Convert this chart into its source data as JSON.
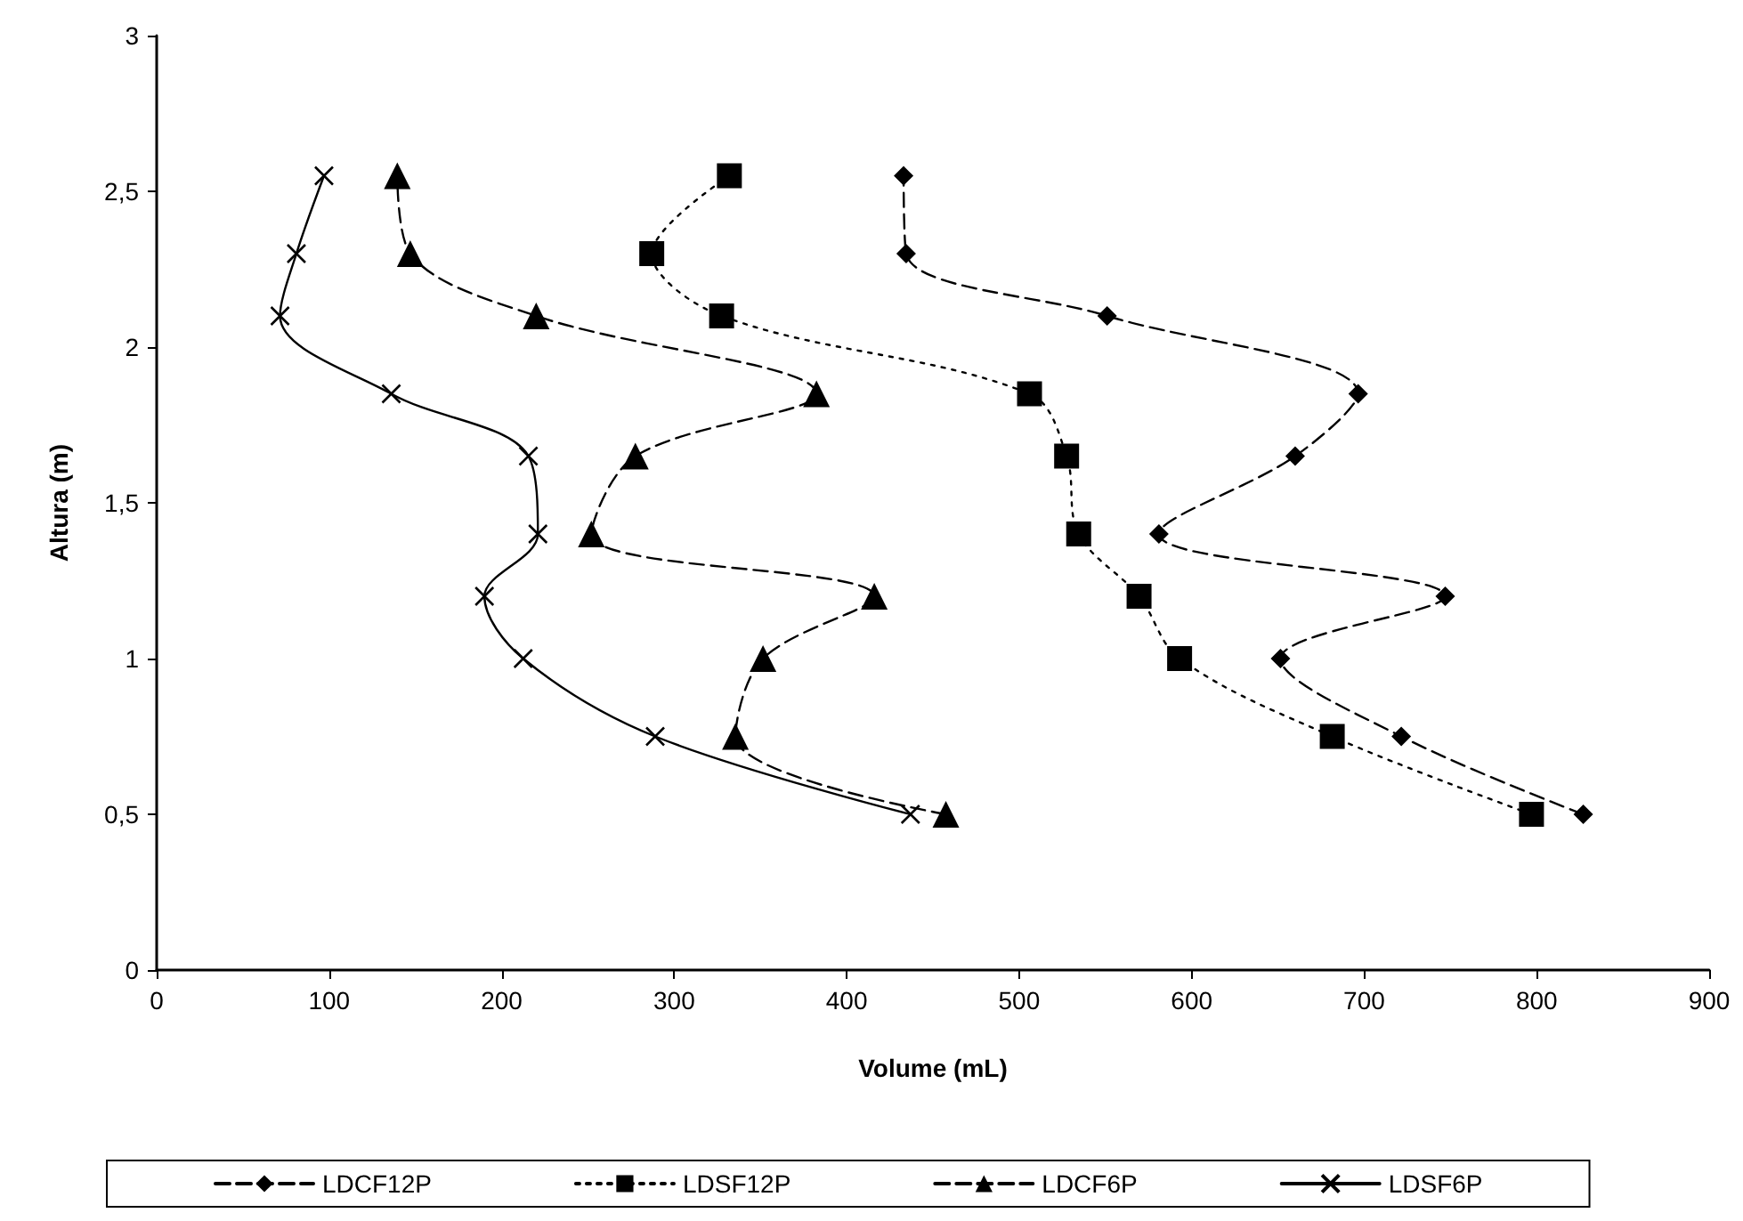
{
  "chart_data": {
    "type": "line",
    "xlabel": "Volume (mL)",
    "ylabel": "Altura (m)",
    "xlim": [
      0,
      900
    ],
    "xticks": [
      0,
      100,
      200,
      300,
      400,
      500,
      600,
      700,
      800,
      900
    ],
    "ylim": [
      0,
      3
    ],
    "yticks": [
      0,
      {
        "value": 0.5,
        "label": "0,5"
      },
      1,
      {
        "value": 1.5,
        "label": "1,5"
      },
      2,
      {
        "value": 2.5,
        "label": "2,5"
      },
      3
    ],
    "grid": false,
    "legend": "bottom",
    "series": [
      {
        "name": "LDCF12P",
        "color": "#000000",
        "marker": "diamond",
        "line_style": "dashed",
        "x": [
          827,
          721.5,
          651.5,
          747,
          581,
          660,
          696.5,
          551,
          434.5,
          433
        ],
        "values": [
          0.5,
          0.75,
          1.0,
          1.2,
          1.4,
          1.65,
          1.85,
          2.1,
          2.3,
          2.55
        ]
      },
      {
        "name": "LDSF12P",
        "color": "#000000",
        "marker": "square",
        "line_style": "dotted",
        "x": [
          797,
          681.5,
          593,
          569.5,
          534.5,
          527.5,
          506,
          327.5,
          287,
          332
        ],
        "values": [
          0.5,
          0.75,
          1.0,
          1.2,
          1.4,
          1.65,
          1.85,
          2.1,
          2.3,
          2.55
        ]
      },
      {
        "name": "LDCF6P",
        "color": "#000000",
        "marker": "triangle",
        "line_style": "dashed",
        "x": [
          457.5,
          335.5,
          351.5,
          416,
          252,
          277.5,
          382.5,
          220,
          147,
          139.5
        ],
        "values": [
          0.5,
          0.75,
          1.0,
          1.2,
          1.4,
          1.65,
          1.85,
          2.1,
          2.3,
          2.55
        ]
      },
      {
        "name": "LDSF6P",
        "color": "#000000",
        "marker": "cross",
        "line_style": "solid",
        "x": [
          437,
          289,
          212.5,
          190,
          221,
          215.5,
          136,
          71.5,
          81,
          97
        ],
        "values": [
          0.5,
          0.75,
          1.0,
          1.2,
          1.4,
          1.65,
          1.85,
          2.1,
          2.3,
          2.55
        ]
      }
    ]
  }
}
